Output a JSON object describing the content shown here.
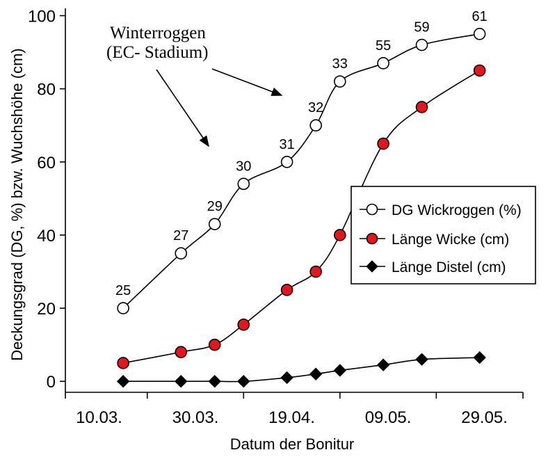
{
  "chart_data": {
    "type": "line",
    "xlabel": "Datum der Bonitur",
    "ylabel": "Deckungsgrad (DG, %) bzw. Wuchshöhe (cm)",
    "x_ticks": [
      "10.03.",
      "30.03.",
      "19.04.",
      "09.05.",
      "29.05."
    ],
    "x_range": [
      "2003-03-03",
      "2003-06-06"
    ],
    "y_ticks": [
      "0",
      "20",
      "40",
      "60",
      "80",
      "100"
    ],
    "ylim": [
      -3,
      102
    ],
    "grid": false,
    "legend_position": "right",
    "annotation": {
      "line1": "Winterroggen",
      "line2": "(EC- Stadium)"
    },
    "series": [
      {
        "name": "DG Wickroggen (%)",
        "marker": "open-circle",
        "color": "#ffffff",
        "points": [
          {
            "x": "2003-03-15",
            "y": 20,
            "label": "25"
          },
          {
            "x": "2003-03-27",
            "y": 35,
            "label": "27"
          },
          {
            "x": "2003-04-03",
            "y": 43,
            "label": "29"
          },
          {
            "x": "2003-04-09",
            "y": 54,
            "label": "30"
          },
          {
            "x": "2003-04-18",
            "y": 60,
            "label": "31"
          },
          {
            "x": "2003-04-24",
            "y": 70,
            "label": "32"
          },
          {
            "x": "2003-04-29",
            "y": 82,
            "label": "33"
          },
          {
            "x": "2003-05-08",
            "y": 87,
            "label": "55"
          },
          {
            "x": "2003-05-16",
            "y": 92,
            "label": "59"
          },
          {
            "x": "2003-05-28",
            "y": 95,
            "label": "61"
          }
        ]
      },
      {
        "name": "Länge Wicke (cm)",
        "marker": "filled-circle",
        "color": "#e8141b",
        "points": [
          {
            "x": "2003-03-15",
            "y": 5
          },
          {
            "x": "2003-03-27",
            "y": 8
          },
          {
            "x": "2003-04-03",
            "y": 10
          },
          {
            "x": "2003-04-09",
            "y": 15.5
          },
          {
            "x": "2003-04-18",
            "y": 25
          },
          {
            "x": "2003-04-24",
            "y": 30
          },
          {
            "x": "2003-04-29",
            "y": 40
          },
          {
            "x": "2003-05-08",
            "y": 65
          },
          {
            "x": "2003-05-16",
            "y": 75
          },
          {
            "x": "2003-05-28",
            "y": 85
          }
        ]
      },
      {
        "name": "Länge Distel (cm)",
        "marker": "diamond",
        "color": "#000000",
        "points": [
          {
            "x": "2003-03-15",
            "y": 0
          },
          {
            "x": "2003-03-27",
            "y": 0
          },
          {
            "x": "2003-04-03",
            "y": 0
          },
          {
            "x": "2003-04-09",
            "y": 0
          },
          {
            "x": "2003-04-18",
            "y": 1
          },
          {
            "x": "2003-04-24",
            "y": 2
          },
          {
            "x": "2003-04-29",
            "y": 3
          },
          {
            "x": "2003-05-08",
            "y": 4.5
          },
          {
            "x": "2003-05-16",
            "y": 6
          },
          {
            "x": "2003-05-28",
            "y": 6.5
          }
        ]
      }
    ]
  }
}
